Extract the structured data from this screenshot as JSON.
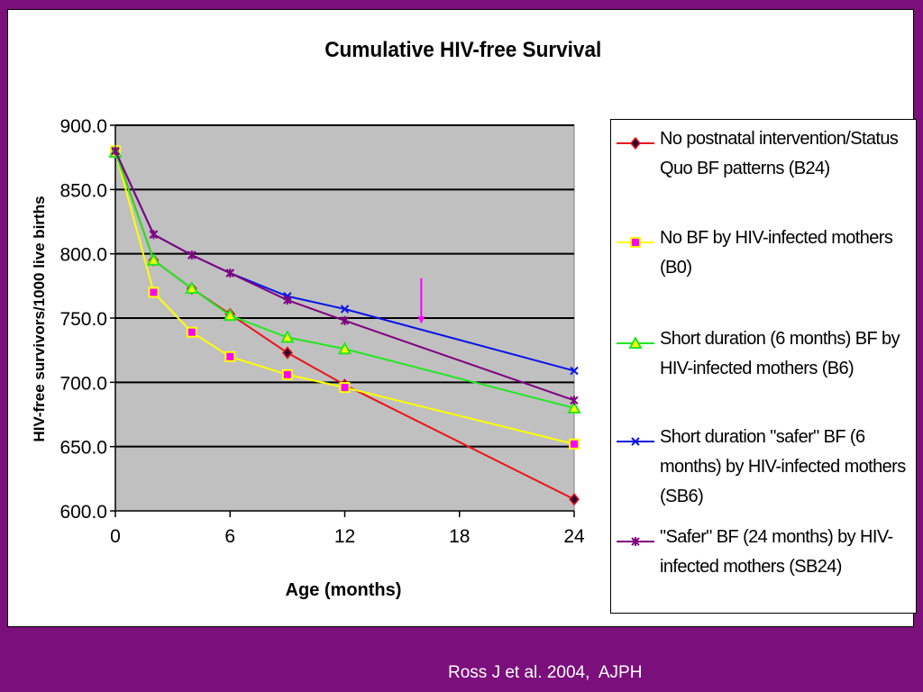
{
  "citation": "Ross J et al. 2004,  AJPH",
  "chart_data": {
    "type": "line",
    "title": "Cumulative HIV-free Survival",
    "xlabel": "Age (months)",
    "ylabel": "HIV-free survivors/1000 live births",
    "xlim": [
      0,
      24
    ],
    "ylim": [
      600,
      900
    ],
    "x_ticks": [
      "0",
      "6",
      "12",
      "18",
      "24"
    ],
    "y_ticks": [
      "600.0",
      "650.0",
      "700.0",
      "750.0",
      "800.0",
      "850.0",
      "900.0"
    ],
    "grid": true,
    "legend_position": "right",
    "plot_background": "#c0c0c0",
    "series": [
      {
        "name": "No postnatal intervention/Status Quo BF patterns (B24)",
        "color": "#e8141b",
        "marker": "diamond",
        "x": [
          0,
          2,
          4,
          6,
          9,
          12,
          24
        ],
        "y": [
          880,
          795,
          773,
          753,
          723,
          698,
          609
        ]
      },
      {
        "name": "No BF by HIV-infected mothers (B0)",
        "color": "#ffff00",
        "marker": "square",
        "x": [
          0,
          2,
          4,
          6,
          9,
          12,
          24
        ],
        "y": [
          880,
          770,
          739,
          720,
          706,
          696,
          652
        ]
      },
      {
        "name": "Short duration (6 months) BF by HIV-infected mothers (B6)",
        "color": "#22e622",
        "marker": "triangle",
        "x": [
          0,
          2,
          4,
          6,
          9,
          12,
          24
        ],
        "y": [
          879,
          795,
          773,
          752,
          735,
          726,
          680
        ]
      },
      {
        "name": "Short duration \"safer\" BF (6 months) by HIV-infected mothers (SB6)",
        "color": "#0a14e6",
        "marker": "x",
        "x": [
          0,
          2,
          4,
          6,
          9,
          12,
          24
        ],
        "y": [
          880,
          815,
          799,
          785,
          767,
          757,
          709
        ]
      },
      {
        "name": "\"Safer\" BF (24 months) by HIV-infected mothers (SB24)",
        "color": "#800080",
        "marker": "star",
        "x": [
          0,
          2,
          4,
          6,
          9,
          12,
          24
        ],
        "y": [
          880,
          815,
          799,
          785,
          764,
          748,
          686
        ]
      }
    ],
    "annotations": [
      {
        "type": "arrow",
        "color": "#ff00ff",
        "x": 16,
        "y_from": 781,
        "y_to": 747
      }
    ]
  }
}
